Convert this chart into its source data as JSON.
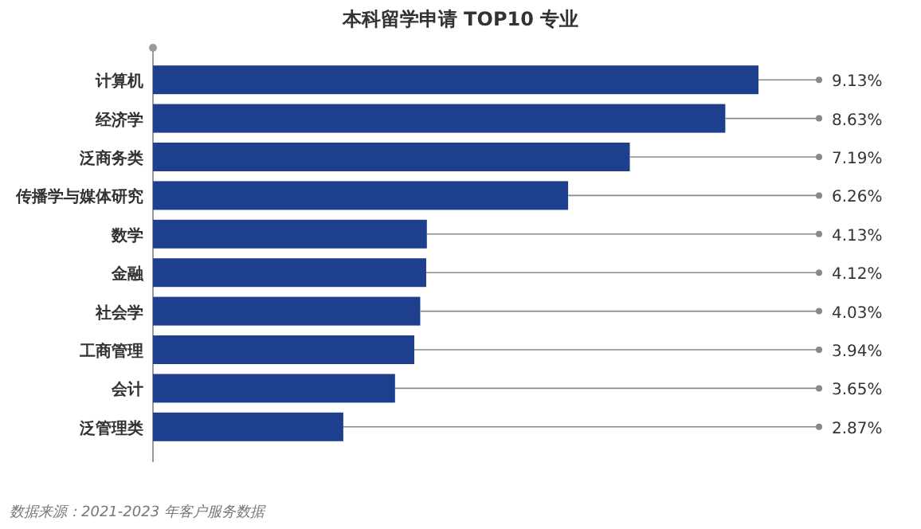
{
  "chart_data": {
    "type": "bar",
    "orientation": "horizontal",
    "title": "本科留学申请 TOP10 专业",
    "categories": [
      "计算机",
      "经济学",
      "泛商务类",
      "传播学与媒体研究",
      "数学",
      "金融",
      "社会学",
      "工商管理",
      "会计",
      "泛管理类"
    ],
    "values": [
      9.13,
      8.63,
      7.19,
      6.26,
      4.13,
      4.12,
      4.03,
      3.94,
      3.65,
      2.87
    ],
    "value_labels": [
      "9.13%",
      "8.63%",
      "7.19%",
      "6.26%",
      "4.13%",
      "4.12%",
      "4.03%",
      "3.94%",
      "3.65%",
      "2.87%"
    ],
    "color": "#1d3f8e",
    "annotations": [
      "数据来源：2021-2023 年客户服务数据"
    ]
  }
}
